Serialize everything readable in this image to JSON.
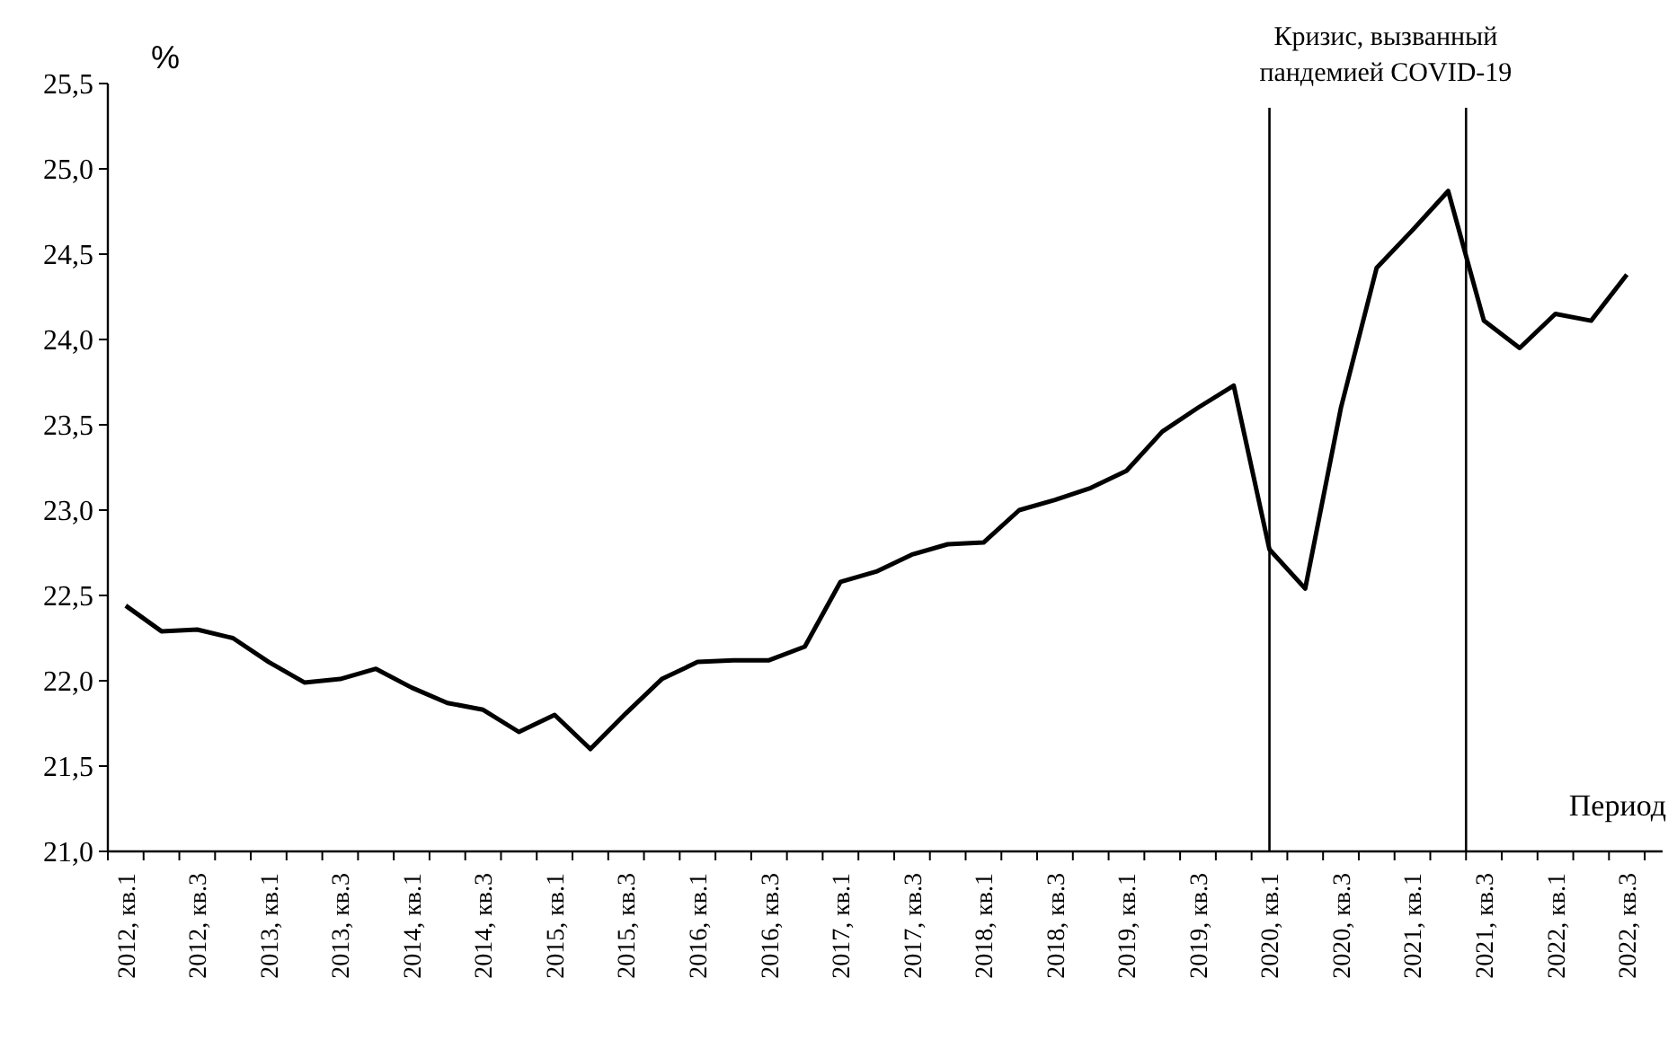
{
  "chart_data": {
    "type": "line",
    "ylabel": "%",
    "xlabel": "Период",
    "categories": [
      "2012, кв.1",
      null,
      "2012, кв.3",
      null,
      "2013, кв.1",
      null,
      "2013, кв.3",
      null,
      "2014, кв.1",
      null,
      "2014, кв.3",
      null,
      "2015, кв.1",
      null,
      "2015, кв.3",
      null,
      "2016, кв.1",
      null,
      "2016, кв.3",
      null,
      "2017, кв.1",
      null,
      "2017, кв.3",
      null,
      "2018, кв.1",
      null,
      "2018, кв.3",
      null,
      "2019, кв.1",
      null,
      "2019, кв.3",
      null,
      "2020, кв.1",
      null,
      "2020, кв.3",
      null,
      "2021, кв.1",
      null,
      "2021, кв.3",
      null,
      "2022, кв.1",
      null,
      "2022, кв.3"
    ],
    "series": [
      {
        "color": "#000000",
        "values": [
          22.44,
          22.29,
          22.3,
          22.25,
          22.11,
          21.99,
          22.01,
          22.07,
          21.96,
          21.87,
          21.83,
          21.7,
          21.8,
          21.6,
          21.81,
          22.01,
          22.11,
          22.12,
          22.12,
          22.2,
          22.58,
          22.64,
          22.74,
          22.8,
          22.81,
          23.0,
          23.06,
          23.13,
          23.23,
          23.46,
          23.6,
          23.73,
          22.77,
          22.54,
          23.6,
          24.42,
          24.64,
          24.87,
          24.11,
          23.95,
          24.15,
          24.11,
          24.38
        ]
      }
    ],
    "ylim": [
      21,
      25.5
    ],
    "yticks": [
      {
        "value": 21,
        "label": "21,0"
      },
      {
        "value": 21.5,
        "label": "21,5"
      },
      {
        "value": 22,
        "label": "22,0"
      },
      {
        "value": 22.5,
        "label": "22,5"
      },
      {
        "value": 23,
        "label": "23,0"
      },
      {
        "value": 23.5,
        "label": "23,5"
      },
      {
        "value": 24,
        "label": "24,0"
      },
      {
        "value": 24.5,
        "label": "24,5"
      },
      {
        "value": 25,
        "label": "25,0"
      },
      {
        "value": 25.5,
        "label": "25,5"
      }
    ],
    "ref_lines": [
      {
        "axis": "x",
        "value": "2020, кв.1",
        "color": "#000000"
      }
    ],
    "annotations": [
      "Кризис, вызванный\nпандемией COVID-19"
    ],
    "grid": false,
    "marker": "none",
    "line_style": "solid"
  }
}
